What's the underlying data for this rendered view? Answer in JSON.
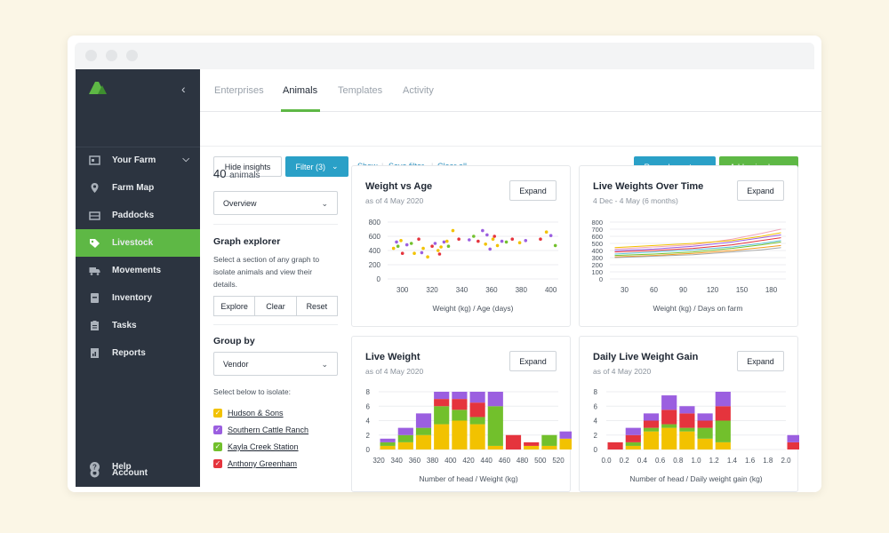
{
  "sidebar": {
    "items": [
      {
        "label": "Your Farm",
        "icon": "farm-icon"
      },
      {
        "label": "Farm Map",
        "icon": "map-pin-icon"
      },
      {
        "label": "Paddocks",
        "icon": "fence-icon"
      },
      {
        "label": "Livestock",
        "icon": "tag-icon"
      },
      {
        "label": "Movements",
        "icon": "truck-icon"
      },
      {
        "label": "Inventory",
        "icon": "inventory-icon"
      },
      {
        "label": "Tasks",
        "icon": "clipboard-icon"
      },
      {
        "label": "Reports",
        "icon": "report-icon"
      }
    ],
    "footer": [
      {
        "label": "Account",
        "icon": "gear-icon"
      },
      {
        "label": "Help",
        "icon": "help-icon"
      }
    ]
  },
  "tabs": [
    "Enterprises",
    "Animals",
    "Templates",
    "Activity"
  ],
  "toolbar": {
    "hide_insights": "Hide insights",
    "filter": "Filter (3)",
    "show": "Show",
    "save_filter": "Save filter",
    "clear_all": "Clear all",
    "record_event": "Record event",
    "add_animals": "Add animals"
  },
  "panel": {
    "count": "40",
    "count_label": "animals",
    "view_select": "Overview",
    "graph_explorer_title": "Graph explorer",
    "graph_explorer_desc": "Select a section of any graph to isolate animals and view their details.",
    "explore": "Explore",
    "clear": "Clear",
    "reset": "Reset",
    "group_by_title": "Group by",
    "group_by_select": "Vendor",
    "isolate_label": "Select below to isolate:",
    "vendors": [
      {
        "name": "Hudson & Sons",
        "color": "#f2c200"
      },
      {
        "name": "Southern Cattle Ranch",
        "color": "#9b5fe0"
      },
      {
        "name": "Kayla Creek Station",
        "color": "#72c02c"
      },
      {
        "name": "Anthony Greenham",
        "color": "#e5343d"
      }
    ]
  },
  "cards": [
    {
      "title": "Weight vs Age",
      "subtitle": "as of 4 May 2020",
      "expand": "Expand"
    },
    {
      "title": "Live Weights Over Time",
      "subtitle": "4 Dec - 4 May (6 months)",
      "expand": "Expand"
    },
    {
      "title": "Live Weight",
      "subtitle": "as of 4 May 2020",
      "expand": "Expand"
    },
    {
      "title": "Daily Live Weight Gain",
      "subtitle": "as of 4 May 2020",
      "expand": "Expand"
    }
  ],
  "chart_data": [
    {
      "type": "scatter",
      "title": "Weight vs Age",
      "xlabel": "Weight (kg) / Age (days)",
      "xlim": [
        290,
        405
      ],
      "ylim": [
        0,
        800
      ],
      "xticks": [
        300,
        320,
        340,
        360,
        380,
        400
      ],
      "yticks": [
        0,
        200,
        400,
        600,
        800
      ],
      "points": [
        {
          "x": 294,
          "y": 430,
          "c": "#f2c200"
        },
        {
          "x": 296,
          "y": 520,
          "c": "#9b5fe0"
        },
        {
          "x": 297,
          "y": 460,
          "c": "#72c02c"
        },
        {
          "x": 299,
          "y": 540,
          "c": "#f2c200"
        },
        {
          "x": 300,
          "y": 360,
          "c": "#e5343d"
        },
        {
          "x": 303,
          "y": 480,
          "c": "#9b5fe0"
        },
        {
          "x": 306,
          "y": 500,
          "c": "#72c02c"
        },
        {
          "x": 308,
          "y": 360,
          "c": "#f2c200"
        },
        {
          "x": 311,
          "y": 560,
          "c": "#e5343d"
        },
        {
          "x": 313,
          "y": 370,
          "c": "#9b5fe0"
        },
        {
          "x": 314,
          "y": 430,
          "c": "#f2c200"
        },
        {
          "x": 317,
          "y": 310,
          "c": "#f2c200"
        },
        {
          "x": 320,
          "y": 460,
          "c": "#e5343d"
        },
        {
          "x": 322,
          "y": 500,
          "c": "#9b5fe0"
        },
        {
          "x": 324,
          "y": 400,
          "c": "#f2c200"
        },
        {
          "x": 325,
          "y": 350,
          "c": "#e5343d"
        },
        {
          "x": 326,
          "y": 450,
          "c": "#f2c200"
        },
        {
          "x": 328,
          "y": 520,
          "c": "#9b5fe0"
        },
        {
          "x": 330,
          "y": 530,
          "c": "#f2c200"
        },
        {
          "x": 331,
          "y": 460,
          "c": "#72c02c"
        },
        {
          "x": 334,
          "y": 680,
          "c": "#f2c200"
        },
        {
          "x": 338,
          "y": 560,
          "c": "#e5343d"
        },
        {
          "x": 345,
          "y": 550,
          "c": "#9b5fe0"
        },
        {
          "x": 348,
          "y": 600,
          "c": "#72c02c"
        },
        {
          "x": 351,
          "y": 530,
          "c": "#e5343d"
        },
        {
          "x": 354,
          "y": 680,
          "c": "#9b5fe0"
        },
        {
          "x": 356,
          "y": 490,
          "c": "#f2c200"
        },
        {
          "x": 357,
          "y": 620,
          "c": "#9b5fe0"
        },
        {
          "x": 359,
          "y": 420,
          "c": "#9b5fe0"
        },
        {
          "x": 361,
          "y": 560,
          "c": "#f2c200"
        },
        {
          "x": 362,
          "y": 600,
          "c": "#e5343d"
        },
        {
          "x": 364,
          "y": 470,
          "c": "#f2c200"
        },
        {
          "x": 367,
          "y": 530,
          "c": "#9b5fe0"
        },
        {
          "x": 370,
          "y": 520,
          "c": "#72c02c"
        },
        {
          "x": 374,
          "y": 560,
          "c": "#e5343d"
        },
        {
          "x": 379,
          "y": 510,
          "c": "#f2c200"
        },
        {
          "x": 383,
          "y": 540,
          "c": "#9b5fe0"
        },
        {
          "x": 393,
          "y": 560,
          "c": "#e5343d"
        },
        {
          "x": 397,
          "y": 660,
          "c": "#f2c200"
        },
        {
          "x": 400,
          "y": 610,
          "c": "#9b5fe0"
        },
        {
          "x": 403,
          "y": 470,
          "c": "#72c02c"
        }
      ]
    },
    {
      "type": "line",
      "title": "Live Weights Over Time",
      "xlabel": "Weight (kg) / Days on farm",
      "xlim": [
        15,
        195
      ],
      "ylim": [
        0,
        800
      ],
      "xticks": [
        30,
        60,
        90,
        120,
        150,
        180
      ],
      "yticks": [
        0,
        100,
        200,
        300,
        400,
        500,
        600,
        700,
        800
      ],
      "x": [
        20,
        60,
        100,
        140,
        170,
        190
      ],
      "series": [
        {
          "color": "#f2a4b8",
          "values": [
            420,
            450,
            480,
            560,
            640,
            700
          ]
        },
        {
          "color": "#f2c200",
          "values": [
            440,
            470,
            500,
            540,
            600,
            650
          ]
        },
        {
          "color": "#9b5fe0",
          "values": [
            400,
            420,
            460,
            520,
            580,
            620
          ]
        },
        {
          "color": "#e5343d",
          "values": [
            380,
            400,
            430,
            480,
            540,
            580
          ]
        },
        {
          "color": "#5cc0d8",
          "values": [
            350,
            380,
            410,
            450,
            500,
            540
          ]
        },
        {
          "color": "#72c02c",
          "values": [
            330,
            350,
            380,
            430,
            480,
            520
          ]
        },
        {
          "color": "#f39a1f",
          "values": [
            310,
            330,
            360,
            400,
            440,
            470
          ]
        },
        {
          "color": "#a7a7a7",
          "values": [
            300,
            320,
            340,
            380,
            410,
            440
          ]
        }
      ]
    },
    {
      "type": "bar",
      "stacked": true,
      "title": "Live Weight",
      "xlabel": "Number of head / Weight (kg)",
      "ylim": [
        0,
        8
      ],
      "yticks": [
        0,
        2,
        4,
        6,
        8
      ],
      "categories": [
        "320",
        "340",
        "360",
        "380",
        "400",
        "420",
        "440",
        "460",
        "480",
        "500",
        "520"
      ],
      "series": [
        {
          "name": "Hudson & Sons",
          "color": "#f2c200",
          "values": [
            0.5,
            1.0,
            2.0,
            3.5,
            4.0,
            3.5,
            0.5,
            0,
            0.5,
            0.5,
            1.5
          ]
        },
        {
          "name": "Kayla Creek Station",
          "color": "#72c02c",
          "values": [
            0.5,
            1.0,
            1.0,
            2.5,
            1.5,
            1.0,
            5.5,
            0,
            0,
            1.5,
            0
          ]
        },
        {
          "name": "Anthony Greenham",
          "color": "#e5343d",
          "values": [
            0,
            0,
            0,
            1.0,
            1.5,
            2.0,
            0,
            2.0,
            0.5,
            0,
            0
          ]
        },
        {
          "name": "Southern Cattle Ranch",
          "color": "#9b5fe0",
          "values": [
            0.5,
            1.0,
            2.0,
            1.0,
            1.0,
            1.5,
            2.0,
            0,
            0,
            0,
            1.0
          ]
        }
      ]
    },
    {
      "type": "bar",
      "stacked": true,
      "title": "Daily Live Weight Gain",
      "xlabel": "Number of head / Daily weight gain (kg)",
      "ylim": [
        0,
        8
      ],
      "yticks": [
        0,
        2,
        4,
        6,
        8
      ],
      "categories": [
        "0.0",
        "0.2",
        "0.4",
        "0.6",
        "0.8",
        "1.0",
        "1.2",
        "1.4",
        "1.6",
        "1.8",
        "2.0"
      ],
      "series": [
        {
          "name": "Hudson & Sons",
          "color": "#f2c200",
          "values": [
            0,
            0.5,
            2.5,
            3.0,
            2.5,
            1.5,
            1.0,
            0,
            0,
            0,
            0
          ]
        },
        {
          "name": "Kayla Creek Station",
          "color": "#72c02c",
          "values": [
            0,
            0.5,
            0.5,
            0.5,
            0.5,
            1.5,
            3.0,
            0,
            0,
            0,
            0
          ]
        },
        {
          "name": "Anthony Greenham",
          "color": "#e5343d",
          "values": [
            1.0,
            1.0,
            1.0,
            2.0,
            2.0,
            1.0,
            2.0,
            0,
            0,
            0,
            1.0
          ]
        },
        {
          "name": "Southern Cattle Ranch",
          "color": "#9b5fe0",
          "values": [
            0,
            1.0,
            1.0,
            2.0,
            1.0,
            1.0,
            2.0,
            0,
            0,
            0,
            1.0
          ]
        }
      ]
    }
  ]
}
